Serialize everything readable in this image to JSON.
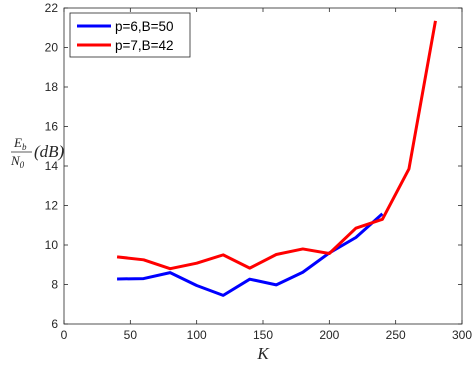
{
  "chart_data": {
    "type": "line",
    "title": "",
    "xlabel": "K",
    "ylabel": {
      "numerator": "E",
      "numerator_sub": "b",
      "denominator": "N",
      "denominator_sub": "0",
      "suffix": "(dB)"
    },
    "xlim": [
      0,
      300
    ],
    "ylim": [
      6,
      22
    ],
    "xticks": [
      0,
      50,
      100,
      150,
      200,
      250,
      300
    ],
    "yticks": [
      6,
      8,
      10,
      12,
      14,
      16,
      18,
      20,
      22
    ],
    "grid": false,
    "legend_position": "top-left",
    "series": [
      {
        "name": "p=6,B=50",
        "color": "#0000ff",
        "x": [
          40,
          60,
          80,
          100,
          120,
          140,
          160,
          180,
          200,
          220,
          240
        ],
        "y": [
          8.28,
          8.3,
          8.6,
          7.95,
          7.45,
          8.27,
          7.98,
          8.62,
          9.6,
          10.38,
          11.58
        ]
      },
      {
        "name": "p=7,B=42",
        "color": "#ff0000",
        "x": [
          40,
          60,
          80,
          100,
          120,
          140,
          160,
          180,
          200,
          220,
          240,
          260,
          280
        ],
        "y": [
          9.4,
          9.25,
          8.8,
          9.08,
          9.5,
          8.83,
          9.52,
          9.8,
          9.57,
          10.85,
          11.3,
          13.85,
          21.35
        ]
      }
    ]
  }
}
